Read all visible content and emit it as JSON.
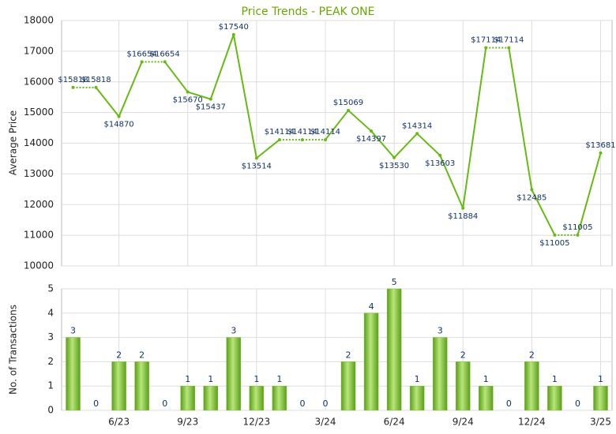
{
  "chart_data": [
    {
      "type": "line",
      "title": "Price Trends - PEAK ONE",
      "y_label": "Average Price",
      "color": "#66bb11",
      "values": [
        15818,
        15818,
        14870,
        16654,
        16654,
        15670,
        15437,
        17540,
        13514,
        14114,
        14114,
        14114,
        15069,
        14397,
        13530,
        14314,
        13603,
        11884,
        17114,
        17114,
        12485,
        11005,
        11005,
        13681
      ],
      "value_labels": [
        "$15818",
        "$15818",
        "$14870",
        "$16654",
        "$16654",
        "$15670",
        "$15437",
        "$17540",
        "$13514",
        "$14114",
        "$14114",
        "$14114",
        "$15069",
        "$14397",
        "$13530",
        "$14314",
        "$13603",
        "$11884",
        "$17114",
        "$17114",
        "$12485",
        "$11005",
        "$11005",
        "$13681"
      ],
      "ylim": [
        10000,
        18000
      ],
      "yticks": [
        10000,
        11000,
        12000,
        13000,
        14000,
        15000,
        16000,
        17000,
        18000
      ],
      "grid": true
    },
    {
      "type": "bar",
      "y_label": "No. of Transactions",
      "color": "#7cc22c",
      "categories": [
        null,
        null,
        "6/23",
        null,
        null,
        "9/23",
        null,
        null,
        "12/23",
        null,
        null,
        "3/24",
        null,
        null,
        "6/24",
        null,
        null,
        "9/24",
        null,
        null,
        "12/24",
        null,
        null,
        "3/25"
      ],
      "values": [
        3,
        0,
        2,
        2,
        0,
        1,
        1,
        3,
        1,
        1,
        0,
        0,
        2,
        4,
        5,
        1,
        3,
        2,
        1,
        0,
        2,
        1,
        0,
        1
      ],
      "ylim": [
        0,
        5
      ],
      "yticks": [
        0,
        1,
        2,
        3,
        4,
        5
      ],
      "grid": true
    }
  ]
}
